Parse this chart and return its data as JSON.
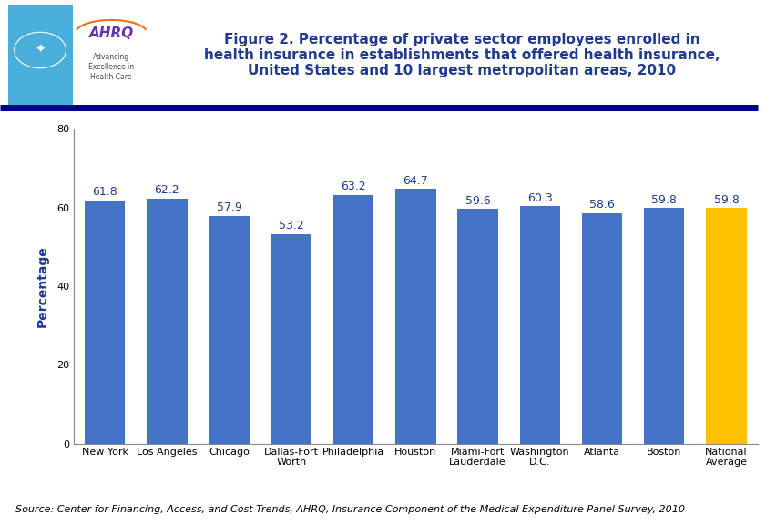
{
  "categories": [
    "New York",
    "Los Angeles",
    "Chicago",
    "Dallas-Fort\nWorth",
    "Philadelphia",
    "Houston",
    "Miami-Fort\nLauderdale",
    "Washington\nD.C.",
    "Atlanta",
    "Boston",
    "National\nAverage"
  ],
  "values": [
    61.8,
    62.2,
    57.9,
    53.2,
    63.2,
    64.7,
    59.6,
    60.3,
    58.6,
    59.8,
    59.8
  ],
  "bar_colors": [
    "#4472C4",
    "#4472C4",
    "#4472C4",
    "#4472C4",
    "#4472C4",
    "#4472C4",
    "#4472C4",
    "#4472C4",
    "#4472C4",
    "#4472C4",
    "#FFC000"
  ],
  "title_line1": "Figure 2. Percentage of private sector employees enrolled in",
  "title_line2": "health insurance in establishments that offered health insurance,",
  "title_line3": "United States and 10 largest metropolitan areas, 2010",
  "ylabel": "Percentage",
  "ylim": [
    0,
    80
  ],
  "yticks": [
    0,
    20,
    40,
    60,
    80
  ],
  "source_text": "Source: Center for Financing, Access, and Cost Trends, AHRQ, Insurance Component of the Medical Expenditure Panel Survey, 2010",
  "title_color": "#1F3A8F",
  "ylabel_color": "#1F3A8F",
  "figure_bg": "#FFFFFF",
  "axes_bg": "#FFFFFF",
  "header_bar_color": "#00008B",
  "value_label_fontsize": 9,
  "axis_label_fontsize": 10,
  "tick_label_fontsize": 8,
  "source_fontsize": 8,
  "value_label_color": "#1F3A8F",
  "bar_width": 0.65,
  "logo_bg": "#4AAEDB",
  "logo_border_color": "#1F3A8F"
}
